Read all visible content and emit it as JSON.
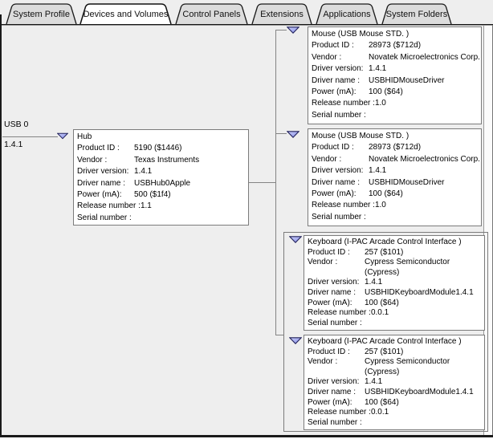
{
  "tabs": [
    {
      "label": "System Profile",
      "active": false
    },
    {
      "label": "Devices and Volumes",
      "active": true
    },
    {
      "label": "Control Panels",
      "active": false
    },
    {
      "label": "Extensions",
      "active": false
    },
    {
      "label": "Applications",
      "active": false
    },
    {
      "label": "System Folders",
      "active": false
    }
  ],
  "bus": {
    "name": "USB 0",
    "version": "1.4.1"
  },
  "colors": {
    "triangle_fill_top": "#c9cdf8",
    "triangle_fill_bottom": "#8890e8",
    "triangle_stroke": "#20205a",
    "box_border": "#7b7b7b",
    "connector": "#848484",
    "tab_inactive": "#dcdcdc",
    "tab_active": "#ffffff"
  },
  "boxes": {
    "hub": {
      "title": "Hub",
      "rows": [
        {
          "label": "Product ID :",
          "value": "5190 ($1446)"
        },
        {
          "label": "Vendor :",
          "value": "Texas Instruments"
        },
        {
          "label": "Driver version:",
          "value": "1.4.1"
        },
        {
          "label": "Driver name :",
          "value": "USBHub0Apple"
        },
        {
          "label": "Power (mA):",
          "value": "500 ($1f4)"
        },
        {
          "label": "Release number :",
          "value": "1.1"
        },
        {
          "label": "Serial number :",
          "value": ""
        }
      ]
    },
    "mouse1": {
      "title": "Mouse (USB Mouse STD.  )",
      "rows": [
        {
          "label": "Product ID :",
          "value": "28973 ($712d)"
        },
        {
          "label": "Vendor :",
          "value": "Novatek Microelectronics Corp."
        },
        {
          "label": "Driver version:",
          "value": "1.4.1"
        },
        {
          "label": "Driver name :",
          "value": "USBHIDMouseDriver"
        },
        {
          "label": "Power (mA):",
          "value": "100 ($64)"
        },
        {
          "label": "Release number :",
          "value": "1.0"
        },
        {
          "label": "Serial number :",
          "value": ""
        }
      ]
    },
    "mouse2": {
      "title": "Mouse (USB Mouse STD.  )",
      "rows": [
        {
          "label": "Product ID :",
          "value": "28973 ($712d)"
        },
        {
          "label": "Vendor :",
          "value": "Novatek Microelectronics Corp."
        },
        {
          "label": "Driver version:",
          "value": "1.4.1"
        },
        {
          "label": "Driver name :",
          "value": "USBHIDMouseDriver"
        },
        {
          "label": "Power (mA):",
          "value": "100 ($64)"
        },
        {
          "label": "Release number :",
          "value": "1.0"
        },
        {
          "label": "Serial number :",
          "value": ""
        }
      ]
    },
    "keyboard1": {
      "title": "Keyboard (I-PAC Arcade Control Interface  )",
      "rows": [
        {
          "label": "Product ID :",
          "value": "257 ($101)"
        },
        {
          "label": "Vendor :",
          "value": "Cypress Semiconductor\n(Cypress)"
        },
        {
          "label": "Driver version:",
          "value": "1.4.1"
        },
        {
          "label": "Driver name :",
          "value": "USBHIDKeyboardModule1.4.1"
        },
        {
          "label": "Power (mA):",
          "value": "100 ($64)"
        },
        {
          "label": "Release number :",
          "value": "0.0.1"
        },
        {
          "label": "Serial number :",
          "value": ""
        }
      ]
    },
    "keyboard2": {
      "title": "Keyboard (I-PAC Arcade Control Interface  )",
      "rows": [
        {
          "label": "Product ID :",
          "value": "257 ($101)"
        },
        {
          "label": "Vendor :",
          "value": "Cypress Semiconductor\n(Cypress)"
        },
        {
          "label": "Driver version:",
          "value": "1.4.1"
        },
        {
          "label": "Driver name :",
          "value": "USBHIDKeyboardModule1.4.1"
        },
        {
          "label": "Power (mA):",
          "value": "100 ($64)"
        },
        {
          "label": "Release number :",
          "value": "0.0.1"
        },
        {
          "label": "Serial number :",
          "value": ""
        }
      ]
    }
  }
}
